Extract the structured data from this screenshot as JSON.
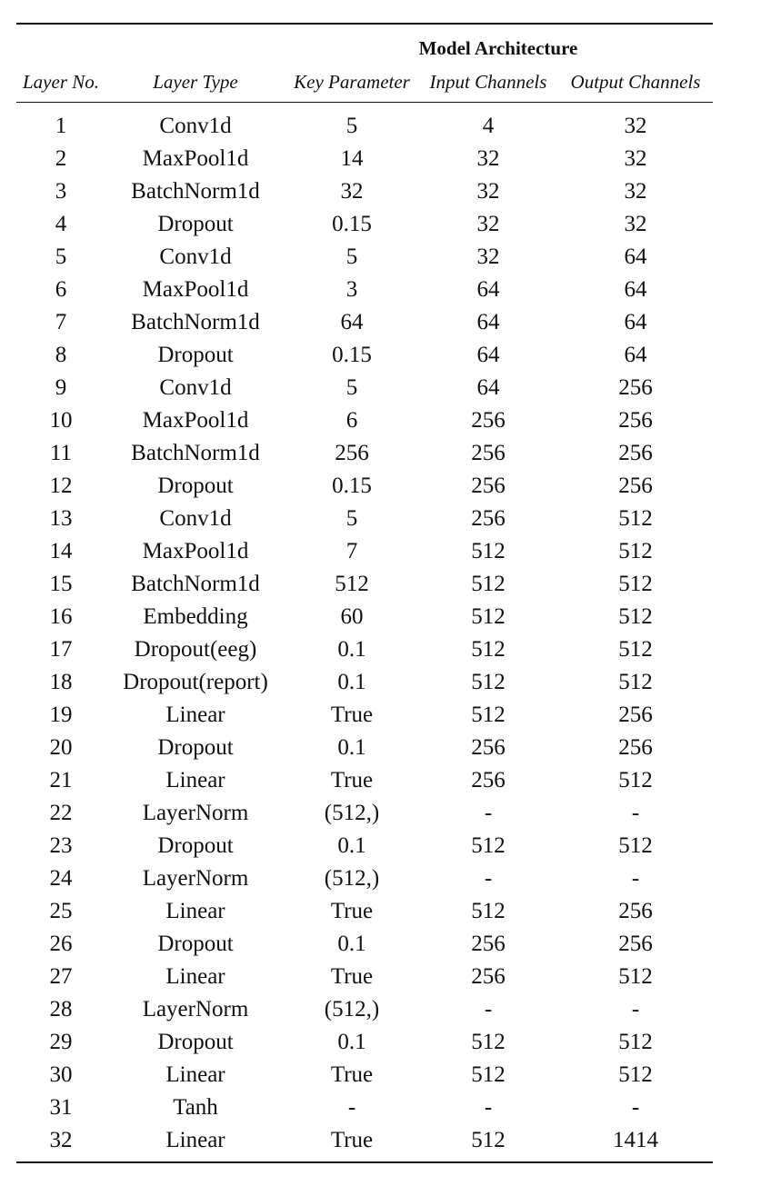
{
  "table": {
    "group_header": "Model Architecture",
    "columns": [
      "Layer No.",
      "Layer Type",
      "Key Parameter",
      "Input Channels",
      "Output Channels"
    ],
    "rows": [
      [
        "1",
        "Conv1d",
        "5",
        "4",
        "32"
      ],
      [
        "2",
        "MaxPool1d",
        "14",
        "32",
        "32"
      ],
      [
        "3",
        "BatchNorm1d",
        "32",
        "32",
        "32"
      ],
      [
        "4",
        "Dropout",
        "0.15",
        "32",
        "32"
      ],
      [
        "5",
        "Conv1d",
        "5",
        "32",
        "64"
      ],
      [
        "6",
        "MaxPool1d",
        "3",
        "64",
        "64"
      ],
      [
        "7",
        "BatchNorm1d",
        "64",
        "64",
        "64"
      ],
      [
        "8",
        "Dropout",
        "0.15",
        "64",
        "64"
      ],
      [
        "9",
        "Conv1d",
        "5",
        "64",
        "256"
      ],
      [
        "10",
        "MaxPool1d",
        "6",
        "256",
        "256"
      ],
      [
        "11",
        "BatchNorm1d",
        "256",
        "256",
        "256"
      ],
      [
        "12",
        "Dropout",
        "0.15",
        "256",
        "256"
      ],
      [
        "13",
        "Conv1d",
        "5",
        "256",
        "512"
      ],
      [
        "14",
        "MaxPool1d",
        "7",
        "512",
        "512"
      ],
      [
        "15",
        "BatchNorm1d",
        "512",
        "512",
        "512"
      ],
      [
        "16",
        "Embedding",
        "60",
        "512",
        "512"
      ],
      [
        "17",
        "Dropout(eeg)",
        "0.1",
        "512",
        "512"
      ],
      [
        "18",
        "Dropout(report)",
        "0.1",
        "512",
        "512"
      ],
      [
        "19",
        "Linear",
        "True",
        "512",
        "256"
      ],
      [
        "20",
        "Dropout",
        "0.1",
        "256",
        "256"
      ],
      [
        "21",
        "Linear",
        "True",
        "256",
        "512"
      ],
      [
        "22",
        "LayerNorm",
        "(512,)",
        "-",
        "-"
      ],
      [
        "23",
        "Dropout",
        "0.1",
        "512",
        "512"
      ],
      [
        "24",
        "LayerNorm",
        "(512,)",
        "-",
        "-"
      ],
      [
        "25",
        "Linear",
        "True",
        "512",
        "256"
      ],
      [
        "26",
        "Dropout",
        "0.1",
        "256",
        "256"
      ],
      [
        "27",
        "Linear",
        "True",
        "256",
        "512"
      ],
      [
        "28",
        "LayerNorm",
        "(512,)",
        "-",
        "-"
      ],
      [
        "29",
        "Dropout",
        "0.1",
        "512",
        "512"
      ],
      [
        "30",
        "Linear",
        "True",
        "512",
        "512"
      ],
      [
        "31",
        "Tanh",
        "-",
        "-",
        "-"
      ],
      [
        "32",
        "Linear",
        "True",
        "512",
        "1414"
      ]
    ]
  }
}
